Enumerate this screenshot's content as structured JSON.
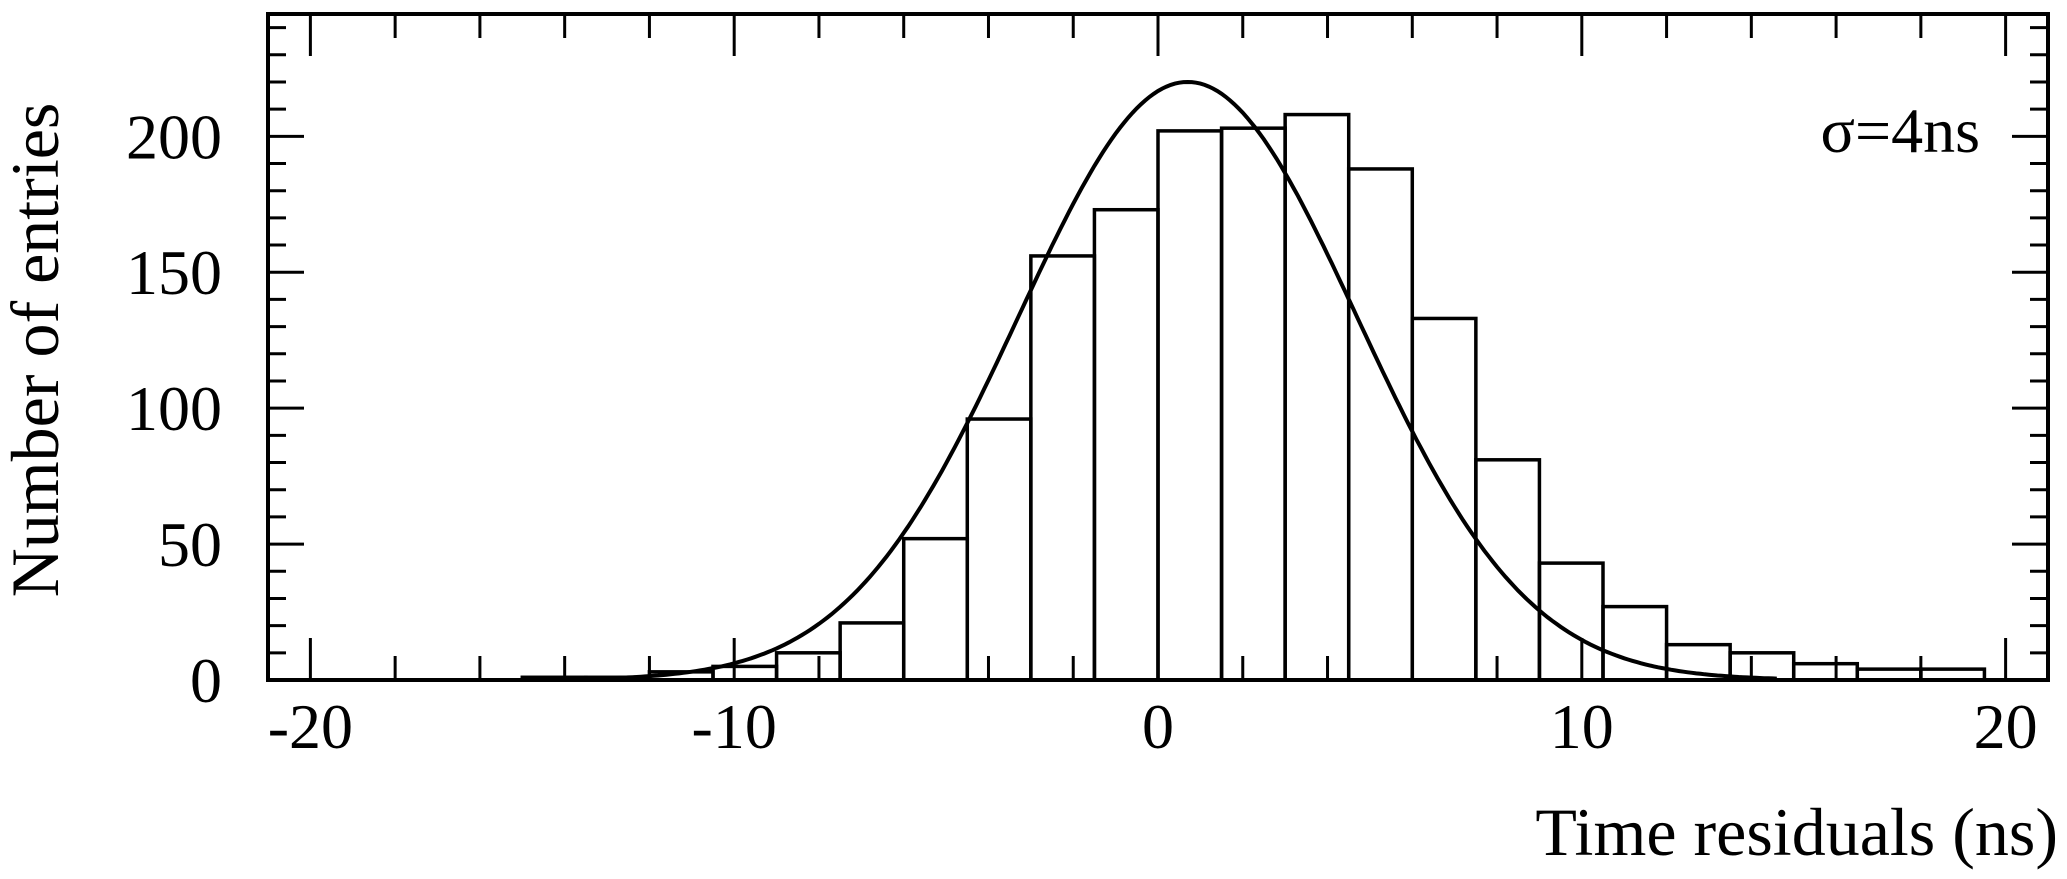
{
  "chart_data": {
    "type": "bar",
    "title": "",
    "xlabel": "Time residuals (ns)",
    "ylabel": "Number of entries",
    "xlim": [
      -21,
      21
    ],
    "ylim": [
      0,
      245
    ],
    "x_ticks": [
      -20,
      -10,
      0,
      10,
      20
    ],
    "x_tick_labels": [
      "-20",
      "-10",
      "0",
      "10",
      "20"
    ],
    "y_ticks": [
      0,
      50,
      100,
      150,
      200
    ],
    "y_tick_labels": [
      "0",
      "50",
      "100",
      "150",
      "200"
    ],
    "annotation": "σ=4ns",
    "grid": false,
    "legend": "none",
    "histogram": {
      "bin_width": 1.5,
      "bin_edges": [
        -15.0,
        -13.5,
        -12.0,
        -10.5,
        -9.0,
        -7.5,
        -6.0,
        -4.5,
        -3.0,
        -1.5,
        0.0,
        1.5,
        3.0,
        4.5,
        6.0,
        7.5,
        9.0,
        10.5,
        12.0,
        13.5,
        15.0,
        16.5,
        18.0,
        19.5
      ],
      "counts": [
        1,
        1,
        3,
        5,
        10,
        21,
        52,
        96,
        156,
        173,
        202,
        203,
        208,
        188,
        133,
        81,
        43,
        27,
        13,
        10,
        6,
        4,
        4
      ]
    },
    "fit": {
      "type": "gaussian",
      "amplitude": 220,
      "mean": 0.7,
      "sigma": 4.0
    }
  }
}
